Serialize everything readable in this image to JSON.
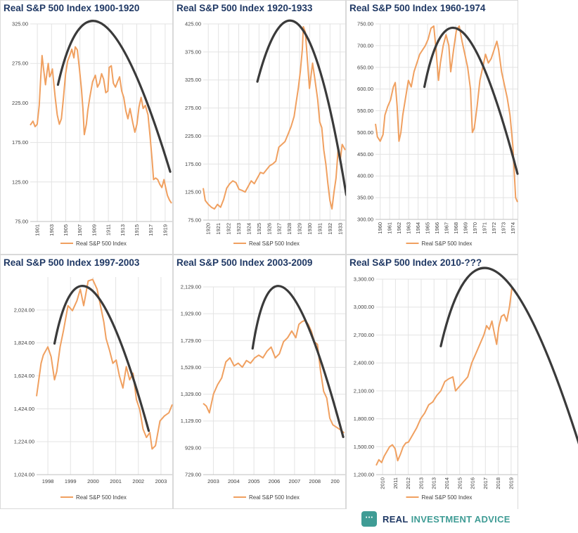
{
  "branding": {
    "name_part1": "REAL",
    "name_part2": "INVESTMENT ADVICE",
    "logo_icon": "shield-chat-icon",
    "accent_color": "#3f9c95",
    "dark_color": "#1f3864"
  },
  "colors": {
    "series": "#f0a060",
    "trend": "#3a3a3a",
    "title": "#1f3864"
  },
  "chart_data": [
    {
      "type": "line",
      "title": "Real S&P 500 Index 1900-1920",
      "legend": [
        "Real S&P 500 Index"
      ],
      "legend_position": "bottom",
      "ylim": [
        75,
        325
      ],
      "yticks": [
        "75.00",
        "125.00",
        "175.00",
        "225.00",
        "275.00",
        "325.00"
      ],
      "xlim": [
        1899.5,
        1920
      ],
      "xticks": [
        "1901",
        "1903",
        "1905",
        "1907",
        "1909",
        "1911",
        "1913",
        "1915",
        "1917",
        "1919"
      ],
      "x_tick_rotation": -90,
      "series": [
        {
          "name": "Real S&P 500 Index",
          "x": [
            1899.5,
            1899.9,
            1900.2,
            1900.5,
            1900.8,
            1901.0,
            1901.2,
            1901.4,
            1901.7,
            1901.9,
            1902.1,
            1902.3,
            1902.5,
            1902.7,
            1902.9,
            1903.1,
            1903.4,
            1903.7,
            1904.0,
            1904.3,
            1904.6,
            1904.9,
            1905.2,
            1905.5,
            1905.8,
            1906.0,
            1906.3,
            1906.6,
            1906.9,
            1907.1,
            1907.3,
            1907.6,
            1907.8,
            1908.1,
            1908.5,
            1908.9,
            1909.2,
            1909.5,
            1909.8,
            1910.1,
            1910.4,
            1910.7,
            1910.9,
            1911.2,
            1911.5,
            1911.8,
            1912.1,
            1912.4,
            1912.7,
            1913.0,
            1913.3,
            1913.6,
            1913.9,
            1914.3,
            1914.6,
            1914.9,
            1915.2,
            1915.5,
            1915.8,
            1916.1,
            1916.5,
            1916.8,
            1917.1,
            1917.3,
            1917.6,
            1917.9,
            1918.2,
            1918.5,
            1918.8,
            1919.0,
            1919.3,
            1919.6,
            1919.9
          ],
          "values": [
            197,
            202,
            195,
            198,
            222,
            255,
            285,
            270,
            248,
            262,
            275,
            258,
            262,
            268,
            250,
            232,
            210,
            198,
            205,
            232,
            262,
            278,
            285,
            293,
            282,
            296,
            292,
            268,
            242,
            218,
            185,
            198,
            215,
            232,
            252,
            260,
            245,
            250,
            262,
            255,
            238,
            240,
            270,
            272,
            250,
            245,
            252,
            258,
            240,
            232,
            215,
            205,
            218,
            200,
            188,
            198,
            220,
            232,
            218,
            222,
            210,
            182,
            152,
            128,
            130,
            128,
            122,
            118,
            128,
            120,
            108,
            102,
            98
          ]
        }
      ],
      "trend": {
        "x": [
          1903.5,
          1910.2,
          1919.7
        ],
        "y": [
          248,
          323,
          138
        ]
      }
    },
    {
      "type": "line",
      "title": "Real S&P 500 Index 1920-1933",
      "legend": [
        "Real S&P 500 Index"
      ],
      "legend_position": "bottom",
      "ylim": [
        75,
        425
      ],
      "yticks": [
        "75.00",
        "125.00",
        "175.00",
        "225.00",
        "275.00",
        "325.00",
        "375.00",
        "425.00"
      ],
      "xlim": [
        1920,
        1933.9
      ],
      "xticks": [
        "1920",
        "1921",
        "1922",
        "1923",
        "1924",
        "1925",
        "1926",
        "1927",
        "1928",
        "1929",
        "1930",
        "1931",
        "1932",
        "1933"
      ],
      "x_tick_rotation": -90,
      "series": [
        {
          "name": "Real S&P 500 Index",
          "x": [
            1920.0,
            1920.2,
            1920.5,
            1920.8,
            1921.1,
            1921.4,
            1921.7,
            1922.0,
            1922.3,
            1922.6,
            1922.9,
            1923.2,
            1923.5,
            1923.8,
            1924.1,
            1924.4,
            1924.7,
            1925.0,
            1925.3,
            1925.6,
            1925.9,
            1926.2,
            1926.5,
            1926.8,
            1927.1,
            1927.4,
            1927.7,
            1928.0,
            1928.3,
            1928.6,
            1928.9,
            1929.1,
            1929.3,
            1929.5,
            1929.7,
            1929.8,
            1930.0,
            1930.2,
            1930.4,
            1930.7,
            1930.9,
            1931.2,
            1931.4,
            1931.6,
            1931.8,
            1932.0,
            1932.2,
            1932.4,
            1932.6,
            1932.8,
            1933.0,
            1933.2,
            1933.4,
            1933.6,
            1933.9
          ],
          "values": [
            132,
            110,
            103,
            98,
            95,
            103,
            98,
            112,
            132,
            140,
            145,
            142,
            130,
            128,
            125,
            135,
            145,
            140,
            150,
            160,
            158,
            165,
            172,
            175,
            180,
            205,
            210,
            215,
            228,
            242,
            260,
            285,
            310,
            340,
            380,
            420,
            410,
            360,
            310,
            355,
            330,
            290,
            250,
            240,
            200,
            175,
            140,
            110,
            95,
            125,
            150,
            200,
            180,
            210,
            200
          ]
        }
      ],
      "trend": {
        "x": [
          1925.3,
          1929.6,
          1934.0
        ],
        "y": [
          322,
          418,
          120
        ]
      }
    },
    {
      "type": "line",
      "title": "Real S&P 500 Index 1960-1974",
      "legend": [
        "Real S&P 500 Index"
      ],
      "legend_position": "bottom",
      "ylim": [
        300,
        750
      ],
      "yticks": [
        "300.00",
        "350.00",
        "400.00",
        "450.00",
        "500.00",
        "550.00",
        "600.00",
        "650.00",
        "700.00",
        "750.00"
      ],
      "xlim": [
        1960,
        1975.1
      ],
      "xticks": [
        "1960",
        "1961",
        "1962",
        "1963",
        "1964",
        "1965",
        "1966",
        "1967",
        "1968",
        "1969",
        "1970",
        "1971",
        "1972",
        "1973",
        "1974"
      ],
      "x_tick_rotation": -90,
      "series": [
        {
          "name": "Real S&P 500 Index",
          "x": [
            1960.0,
            1960.2,
            1960.5,
            1960.8,
            1961.0,
            1961.3,
            1961.6,
            1961.9,
            1962.1,
            1962.3,
            1962.5,
            1962.7,
            1962.9,
            1963.2,
            1963.5,
            1963.8,
            1964.1,
            1964.4,
            1964.7,
            1965.0,
            1965.3,
            1965.6,
            1965.9,
            1966.2,
            1966.4,
            1966.7,
            1966.9,
            1967.2,
            1967.5,
            1967.8,
            1968.0,
            1968.3,
            1968.6,
            1968.9,
            1969.2,
            1969.5,
            1969.8,
            1970.1,
            1970.3,
            1970.5,
            1970.8,
            1971.1,
            1971.4,
            1971.7,
            1972.0,
            1972.3,
            1972.6,
            1972.9,
            1973.1,
            1973.4,
            1973.7,
            1974.0,
            1974.3,
            1974.6,
            1974.9,
            1975.1
          ],
          "values": [
            520,
            490,
            480,
            495,
            540,
            560,
            575,
            605,
            615,
            560,
            480,
            500,
            540,
            580,
            620,
            605,
            640,
            660,
            680,
            690,
            700,
            715,
            740,
            745,
            700,
            620,
            660,
            700,
            725,
            700,
            640,
            690,
            735,
            745,
            710,
            680,
            650,
            600,
            500,
            510,
            560,
            620,
            650,
            680,
            660,
            670,
            690,
            710,
            690,
            640,
            610,
            580,
            540,
            470,
            350,
            340
          ]
        }
      ],
      "trend": {
        "x": [
          1965.2,
          1969.3,
          1975.1
        ],
        "y": [
          605,
          730,
          405
        ]
      }
    },
    {
      "type": "line",
      "title": "Real S&P 500 Index 1997-2003",
      "legend": [
        "Real S&P 500 Index"
      ],
      "legend_position": "bottom",
      "ylim": [
        1024,
        2224
      ],
      "yticks": [
        "1,024.00",
        "1,224.00",
        "1,424.00",
        "1,624.00",
        "1,824.00",
        "2,024.00"
      ],
      "xlim": [
        1997.9,
        2003.95
      ],
      "xticks": [
        "1998",
        "1999",
        "2000",
        "2001",
        "2002",
        "2003"
      ],
      "x_tick_rotation": 0,
      "series": [
        {
          "name": "Real S&P 500 Index",
          "x": [
            1997.9,
            1998.1,
            1998.2,
            1998.4,
            1998.55,
            1998.7,
            1998.8,
            1998.95,
            1999.1,
            1999.3,
            1999.5,
            1999.7,
            1999.85,
            2000.0,
            2000.2,
            2000.4,
            2000.6,
            2000.75,
            2000.9,
            2001.0,
            2001.15,
            2001.3,
            2001.45,
            2001.6,
            2001.75,
            2001.9,
            2002.05,
            2002.2,
            2002.35,
            2002.5,
            2002.65,
            2002.8,
            2002.95,
            2003.05,
            2003.2,
            2003.4,
            2003.6,
            2003.8,
            2003.95
          ],
          "values": [
            1500,
            1700,
            1750,
            1800,
            1740,
            1600,
            1650,
            1800,
            1900,
            2050,
            2020,
            2080,
            2150,
            2050,
            2200,
            2210,
            2150,
            2050,
            1950,
            1850,
            1780,
            1700,
            1720,
            1620,
            1550,
            1680,
            1600,
            1640,
            1480,
            1420,
            1300,
            1250,
            1280,
            1180,
            1200,
            1350,
            1380,
            1400,
            1450
          ]
        }
      ],
      "trend": {
        "x": [
          1998.7,
          2000.4,
          2002.9
        ],
        "y": [
          1820,
          2140,
          1290
        ]
      }
    },
    {
      "type": "line",
      "title": "Real S&P 500 Index 2003-2009",
      "legend": [
        "Real S&P 500 Index"
      ],
      "legend_position": "bottom",
      "ylim": [
        729,
        2129
      ],
      "yticks": [
        "729.00",
        "929.00",
        "1,129.00",
        "1,329.00",
        "1,529.00",
        "1,729.00",
        "1,929.00",
        "2,129.00"
      ],
      "xlim": [
        2003,
        2009.9
      ],
      "xticks": [
        "2003",
        "2004",
        "2005",
        "2006",
        "2007",
        "2008",
        "200"
      ],
      "x_tick_rotation": 0,
      "series": [
        {
          "name": "Real S&P 500 Index",
          "x": [
            2003.0,
            2003.15,
            2003.3,
            2003.5,
            2003.7,
            2003.9,
            2004.1,
            2004.3,
            2004.5,
            2004.7,
            2004.9,
            2005.1,
            2005.3,
            2005.5,
            2005.7,
            2005.9,
            2006.1,
            2006.3,
            2006.5,
            2006.7,
            2006.9,
            2007.1,
            2007.3,
            2007.5,
            2007.65,
            2007.8,
            2007.95,
            2008.1,
            2008.25,
            2008.4,
            2008.55,
            2008.7,
            2008.85,
            2009.0,
            2009.15,
            2009.3,
            2009.5,
            2009.7,
            2009.85
          ],
          "values": [
            1260,
            1240,
            1190,
            1330,
            1400,
            1450,
            1570,
            1600,
            1540,
            1560,
            1530,
            1580,
            1560,
            1600,
            1620,
            1600,
            1650,
            1680,
            1600,
            1630,
            1720,
            1750,
            1800,
            1750,
            1850,
            1870,
            1880,
            1850,
            1800,
            1720,
            1700,
            1500,
            1350,
            1300,
            1150,
            1100,
            1080,
            1060,
            1040
          ]
        }
      ],
      "trend": {
        "x": [
          2005.4,
          2007.1,
          2009.8
        ],
        "y": [
          1670,
          2100,
          1010
        ]
      }
    },
    {
      "type": "line",
      "title": "Real S&P 500 Index 2010-???",
      "legend": [
        "Real S&P 500 Index"
      ],
      "legend_position": "bottom",
      "ylim": [
        1200,
        3300
      ],
      "yticks": [
        "1,200.00",
        "1,500.00",
        "1,800.00",
        "2,100.00",
        "2,400.00",
        "2,700.00",
        "3,000.00",
        "3,300.00"
      ],
      "xlim": [
        2010,
        2020.5
      ],
      "xticks": [
        "2010",
        "2011",
        "2012",
        "2013",
        "2013",
        "2014",
        "2015",
        "2016",
        "2017",
        "2018",
        "2019"
      ],
      "x_tick_rotation": -90,
      "series": [
        {
          "name": "Real S&P 500 Index",
          "x": [
            2010.0,
            2010.2,
            2010.4,
            2010.6,
            2010.8,
            2011.0,
            2011.2,
            2011.4,
            2011.6,
            2011.8,
            2012.0,
            2012.2,
            2012.4,
            2012.6,
            2012.8,
            2013.0,
            2013.3,
            2013.6,
            2013.9,
            2014.2,
            2014.5,
            2014.8,
            2015.1,
            2015.4,
            2015.7,
            2015.9,
            2016.2,
            2016.5,
            2016.8,
            2017.1,
            2017.4,
            2017.7,
            2018.0,
            2018.2,
            2018.4,
            2018.6,
            2018.8,
            2018.95,
            2019.1,
            2019.3,
            2019.5,
            2019.7,
            2019.9,
            2020.1
          ],
          "values": [
            1300,
            1360,
            1330,
            1400,
            1450,
            1500,
            1520,
            1480,
            1350,
            1420,
            1500,
            1540,
            1550,
            1600,
            1650,
            1700,
            1800,
            1860,
            1950,
            1980,
            2050,
            2100,
            2200,
            2230,
            2250,
            2100,
            2150,
            2200,
            2250,
            2400,
            2500,
            2600,
            2700,
            2800,
            2760,
            2850,
            2700,
            2600,
            2780,
            2900,
            2920,
            2850,
            3000,
            3220
          ]
        }
      ],
      "trend": {
        "x": [
          2014.8,
          2019.2,
          2025.5
        ],
        "y": [
          2580,
          3350,
          1330
        ]
      }
    }
  ]
}
